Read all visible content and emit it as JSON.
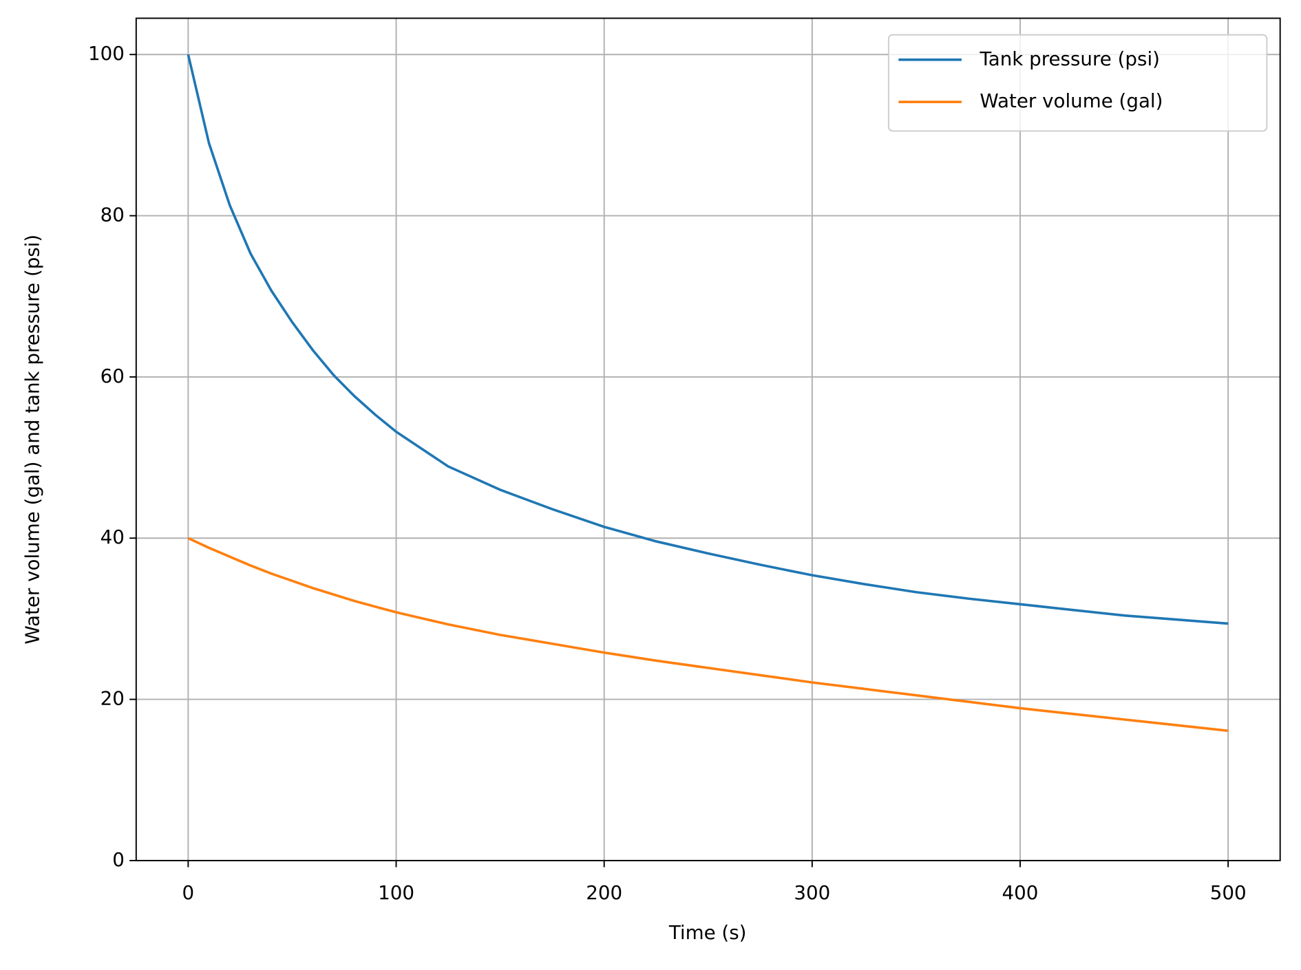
{
  "chart_data": {
    "type": "line",
    "xlabel": "Time (s)",
    "ylabel": "Water volume (gal) and tank pressure (psi)",
    "x": [
      0,
      10,
      20,
      30,
      40,
      50,
      60,
      70,
      80,
      90,
      100,
      125,
      150,
      175,
      200,
      225,
      250,
      275,
      300,
      325,
      350,
      375,
      400,
      425,
      450,
      475,
      500
    ],
    "series": [
      {
        "name": "Tank pressure (psi)",
        "color": "#1f77b4",
        "values": [
          100,
          89,
          81.3,
          75.3,
          70.7,
          66.8,
          63.3,
          60.2,
          57.6,
          55.3,
          53.2,
          48.9,
          46,
          43.6,
          41.4,
          39.6,
          38.1,
          36.7,
          35.4,
          34.3,
          33.3,
          32.5,
          31.8,
          31.1,
          30.4,
          29.9,
          29.4
        ]
      },
      {
        "name": "Water volume (gal)",
        "color": "#ff7f0e",
        "values": [
          40,
          38.8,
          37.7,
          36.6,
          35.6,
          34.7,
          33.8,
          33,
          32.2,
          31.5,
          30.8,
          29.3,
          28,
          26.9,
          25.8,
          24.8,
          23.9,
          23,
          22.1,
          21.3,
          20.5,
          19.7,
          18.9,
          18.2,
          17.5,
          16.8,
          16.1
        ]
      }
    ],
    "xlim": [
      -25,
      525
    ],
    "ylim": [
      0,
      104.5
    ],
    "xticks": [
      0,
      100,
      200,
      300,
      400,
      500
    ],
    "yticks": [
      0,
      20,
      40,
      60,
      80,
      100
    ],
    "grid": true,
    "legend": "upper right"
  }
}
